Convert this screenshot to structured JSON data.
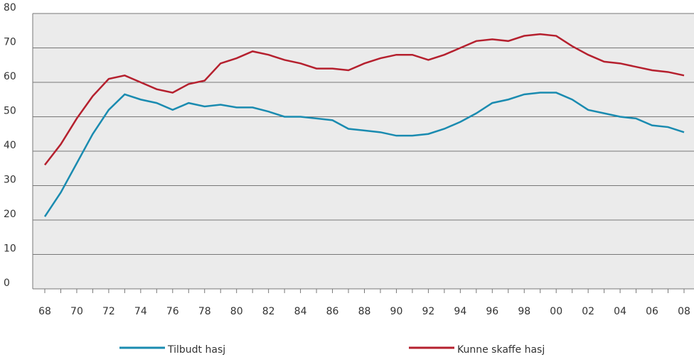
{
  "chart_data": {
    "type": "line",
    "categories": [
      "68",
      null,
      "70",
      null,
      "72",
      null,
      "74",
      null,
      "76",
      null,
      "78",
      null,
      "80",
      null,
      "82",
      null,
      "84",
      null,
      "86",
      null,
      "88",
      null,
      "90",
      null,
      "92",
      null,
      "94",
      null,
      "96",
      null,
      "98",
      null,
      "00",
      null,
      "02",
      null,
      "04",
      null,
      "06",
      null,
      "08"
    ],
    "series": [
      {
        "name": "Tilbudt hasj",
        "color": "#1a8bb0",
        "values": [
          21,
          28,
          36.5,
          45,
          52,
          56.5,
          55,
          54,
          52,
          54,
          53,
          53.5,
          52.7,
          52.7,
          51.5,
          50,
          50,
          49.5,
          49,
          46.5,
          46,
          45.5,
          44.5,
          44.5,
          45,
          46.5,
          48.5,
          51,
          54,
          55,
          56.5,
          57,
          57,
          55,
          52,
          51,
          50,
          49.5,
          47.5,
          47,
          45.5
        ]
      },
      {
        "name": "Kunne skaffe hasj",
        "color": "#b5202e",
        "values": [
          36,
          42,
          49.5,
          56,
          61,
          62,
          60,
          58,
          57,
          59.5,
          60.5,
          65.5,
          67,
          69,
          68,
          66.5,
          65.5,
          64,
          64,
          63.5,
          65.5,
          67,
          68,
          68,
          66.5,
          68,
          70,
          72,
          72.5,
          72,
          73.5,
          74,
          73.5,
          70.5,
          68,
          66,
          65.5,
          64.5,
          63.5,
          63,
          62
        ]
      }
    ],
    "ylim": [
      0,
      80
    ],
    "yticks": [
      0,
      10,
      20,
      30,
      40,
      50,
      60,
      70,
      80
    ],
    "grid": true
  }
}
